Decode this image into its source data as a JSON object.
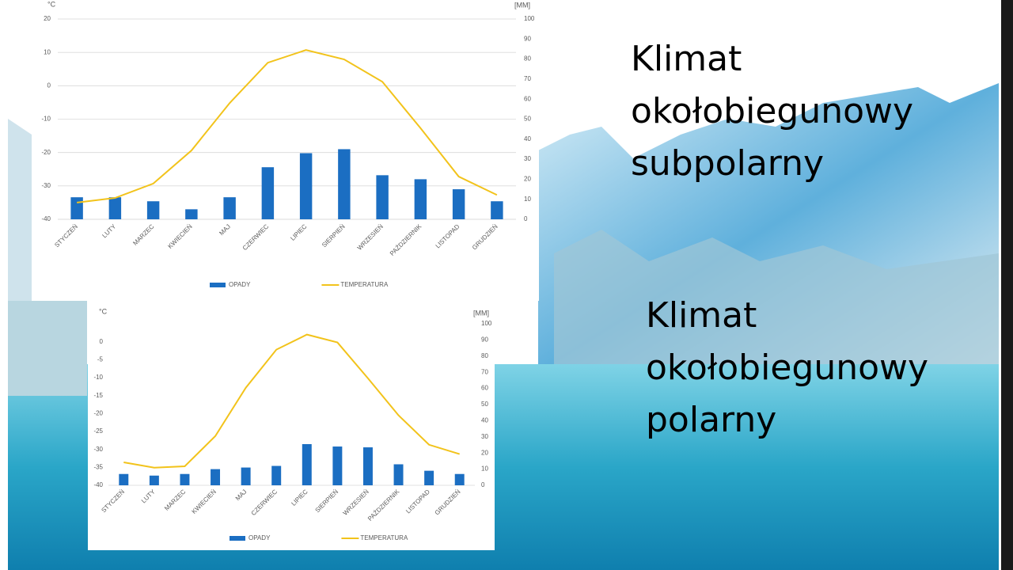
{
  "labels": [
    [
      "Klimat",
      "okołobiegunowy",
      "subpolarny"
    ],
    [
      "Klimat",
      "okołobiegunowy",
      "polarny"
    ]
  ],
  "chart_data": [
    {
      "type": "bar",
      "y_label": "°C",
      "y2_label": "[MM]",
      "categories": [
        "STYCZEŃ",
        "LUTY",
        "MARZEC",
        "KWIECIEŃ",
        "MAJ",
        "CZERWIEC",
        "LIPIEC",
        "SIERPIEŃ",
        "WRZESIEŃ",
        "PAŹDZIERNIK",
        "LISTOPAD",
        "GRUDZIEŃ"
      ],
      "series": [
        {
          "name": "OPADY",
          "type": "bar",
          "axis": "y2",
          "color": "#1b6ec2",
          "values": [
            11,
            11,
            9,
            5,
            11,
            26,
            33,
            35,
            22,
            20,
            15,
            9
          ]
        },
        {
          "name": "TEMPERATURA",
          "type": "line",
          "color": "#f2c31b",
          "values": [
            -35,
            -33.6,
            -29.3,
            -19.4,
            -5.2,
            6.9,
            10.7,
            7.9,
            1.2,
            -12.7,
            -27.2,
            -32.7
          ]
        }
      ],
      "ylim": [
        -40,
        20
      ],
      "yticks": [
        -40,
        -30,
        -20,
        -10,
        0,
        10,
        20
      ],
      "y2lim": [
        0,
        100
      ],
      "y2ticks": [
        0,
        10,
        20,
        30,
        40,
        50,
        60,
        70,
        80,
        90,
        100
      ],
      "grid": true,
      "legend": "bottom"
    },
    {
      "type": "bar",
      "y_label": "°C",
      "y2_label": "[MM]",
      "categories": [
        "STYCZEŃ",
        "LUTY",
        "MARZEC",
        "KWIECIEŃ",
        "MAJ",
        "CZERWIEC",
        "LIPIEC",
        "SIERPIEŃ",
        "WRZESIEŃ",
        "PAŹDZIERNIK",
        "LISTOPAD",
        "GRUDZIEŃ"
      ],
      "series": [
        {
          "name": "OPADY",
          "type": "bar",
          "axis": "y2",
          "color": "#1b6ec2",
          "values": [
            7,
            6,
            7,
            10,
            11,
            12,
            25.5,
            24,
            23.5,
            13,
            9,
            7
          ]
        },
        {
          "name": "TEMPERATURA",
          "type": "line",
          "color": "#f2c31b",
          "values": [
            -33.6,
            -35.1,
            -34.7,
            -26.3,
            -12.8,
            -2.2,
            2,
            -0.2,
            -10.2,
            -20.5,
            -28.7,
            -31.3
          ]
        }
      ],
      "ylim": [
        -40,
        5
      ],
      "yticks": [
        -40,
        -35,
        -30,
        -25,
        -20,
        -15,
        -10,
        -5,
        0
      ],
      "y2lim": [
        0,
        100
      ],
      "y2ticks": [
        0,
        10,
        20,
        30,
        40,
        50,
        60,
        70,
        80,
        90,
        100
      ],
      "grid": false,
      "legend": "bottom"
    }
  ]
}
